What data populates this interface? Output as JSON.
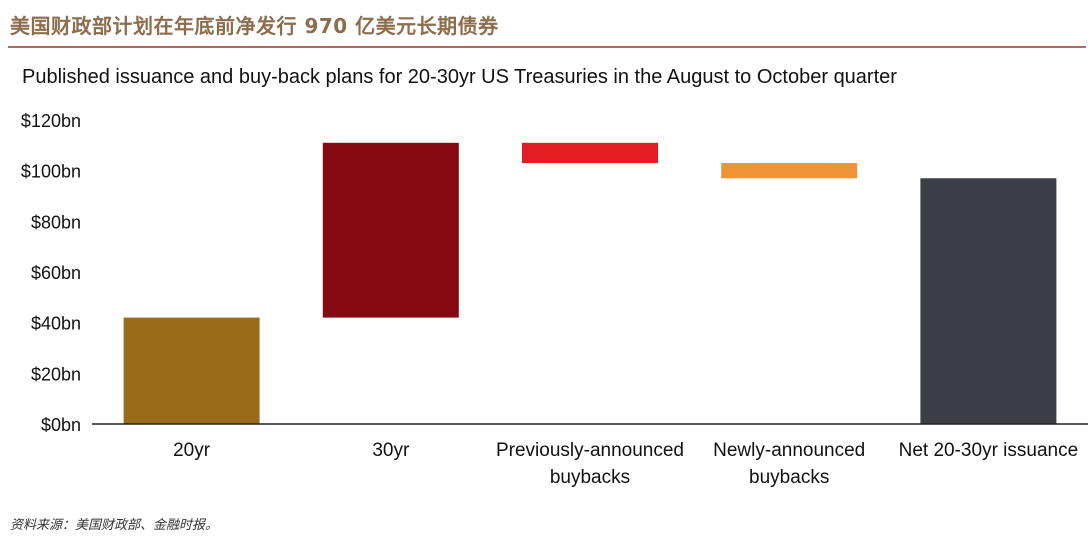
{
  "header": {
    "title": "美国财政部计划在年底前净发行 970 亿美元长期债券"
  },
  "source": "资料来源：美国财政部、金融时报。",
  "chart_data": {
    "type": "waterfall",
    "title": "Published issuance and buy-back plans for 20-30yr US Treasuries in the August to October quarter",
    "xlabel": "",
    "ylabel": "",
    "ylim": [
      0,
      120
    ],
    "yticks": [
      "$0bn",
      "$20bn",
      "$40bn",
      "$60bn",
      "$80bn",
      "$100bn",
      "$120bn"
    ],
    "ytick_values": [
      0,
      20,
      40,
      60,
      80,
      100,
      120
    ],
    "grid": false,
    "categories": [
      [
        "20yr"
      ],
      [
        "30yr"
      ],
      [
        "Previously-announced",
        "buybacks"
      ],
      [
        "Newly-announced",
        "buybacks"
      ],
      [
        "Net 20-30yr issuance"
      ]
    ],
    "bars": [
      {
        "base": 0,
        "top": 42,
        "value": 42,
        "color": "#9a6b18"
      },
      {
        "base": 42,
        "top": 111,
        "value": 69,
        "color": "#860912"
      },
      {
        "base": 111,
        "top": 103,
        "value": -8,
        "color": "#e51d23"
      },
      {
        "base": 103,
        "top": 97,
        "value": -6,
        "color": "#ef9336"
      },
      {
        "base": 0,
        "top": 97,
        "value": 97,
        "color": "#3b3e44"
      }
    ],
    "axis_color": "#222222"
  }
}
